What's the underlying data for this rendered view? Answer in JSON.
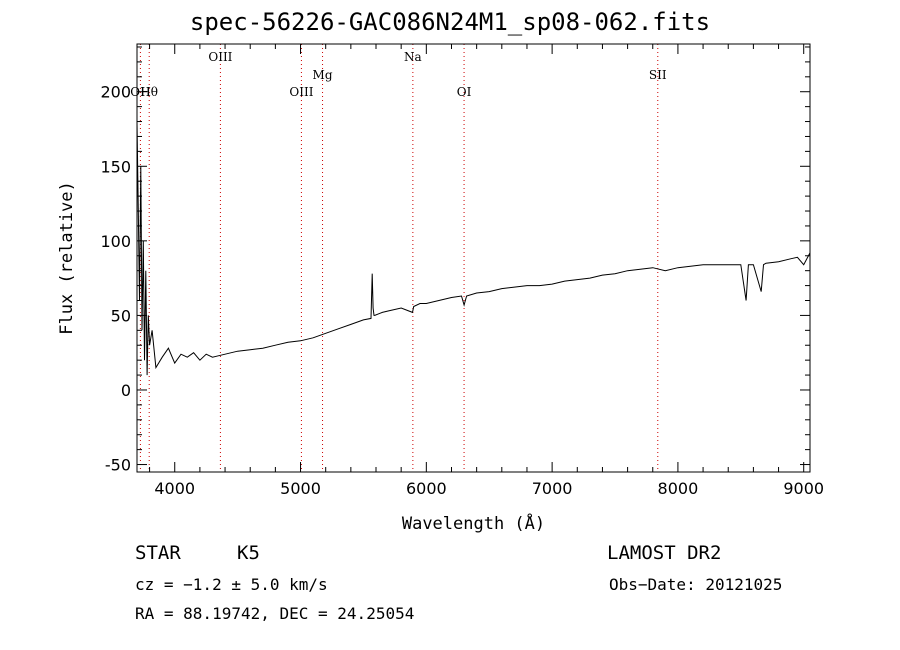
{
  "chart_data": {
    "type": "line",
    "title": "spec-56226-GAC086N24M1_sp08-062.fits",
    "xlabel": "Wavelength (Å)",
    "ylabel": "Flux (relative)",
    "xlim": [
      3700,
      9050
    ],
    "ylim": [
      -55,
      232
    ],
    "xticks": [
      4000,
      5000,
      6000,
      7000,
      8000,
      9000
    ],
    "yticks": [
      -50,
      0,
      50,
      100,
      150,
      200
    ],
    "grid": false,
    "series": [
      {
        "x": [
          3700,
          3710,
          3720,
          3730,
          3740,
          3750,
          3760,
          3770,
          3780,
          3790,
          3800,
          3820,
          3850,
          3900,
          3950,
          4000,
          4050,
          4100,
          4150,
          4200,
          4250,
          4300,
          4350,
          4400,
          4450,
          4500,
          4600,
          4700,
          4800,
          4900,
          5000,
          5100,
          5200,
          5300,
          5400,
          5500,
          5560,
          5570,
          5577,
          5584,
          5590,
          5650,
          5700,
          5800,
          5890,
          5900,
          5950,
          6000,
          6100,
          6200,
          6280,
          6300,
          6320,
          6400,
          6500,
          6600,
          6700,
          6800,
          6900,
          7000,
          7100,
          7200,
          7300,
          7400,
          7500,
          7600,
          7700,
          7800,
          7900,
          8000,
          8100,
          8200,
          8300,
          8400,
          8460,
          8500,
          8542,
          8560,
          8600,
          8662,
          8680,
          8700,
          8800,
          8900,
          8950,
          9000,
          9050
        ],
        "y": [
          180,
          120,
          60,
          150,
          40,
          100,
          20,
          80,
          10,
          50,
          30,
          40,
          15,
          22,
          28,
          18,
          24,
          22,
          25,
          20,
          24,
          22,
          23,
          24,
          25,
          26,
          27,
          28,
          30,
          32,
          33,
          35,
          38,
          41,
          44,
          47,
          48,
          78,
          55,
          50,
          50,
          52,
          53,
          55,
          52,
          56,
          58,
          58,
          60,
          62,
          63,
          57,
          63,
          65,
          66,
          68,
          69,
          70,
          70,
          71,
          73,
          74,
          75,
          77,
          78,
          80,
          81,
          82,
          80,
          82,
          83,
          84,
          84,
          84,
          84,
          84,
          60,
          84,
          84,
          66,
          84,
          85,
          86,
          88,
          89,
          84,
          92
        ]
      }
    ],
    "line_markers": [
      {
        "label": "Hθ",
        "x": 3797,
        "row": 0
      },
      {
        "label": "OIII",
        "x": 4363,
        "row": 1
      },
      {
        "label": "OH",
        "x": 3727,
        "row": 0
      },
      {
        "label": "OIII",
        "x": 5007,
        "row": 0
      },
      {
        "label": "Mg",
        "x": 5175,
        "row": 2
      },
      {
        "label": "Na",
        "x": 5893,
        "row": 1
      },
      {
        "label": "OI",
        "x": 6300,
        "row": 0
      },
      {
        "label": "SII",
        "x": 7840,
        "row": 2
      }
    ],
    "marker_color": "#cc0000"
  },
  "info": {
    "class": "STAR",
    "subclass": "K5",
    "survey": "LAMOST DR2",
    "cz": "cz = −1.2 ± 5.0 km/s",
    "obs_date": "Obs−Date: 20121025",
    "radec": "RA =  88.19742, DEC =  24.25054"
  }
}
